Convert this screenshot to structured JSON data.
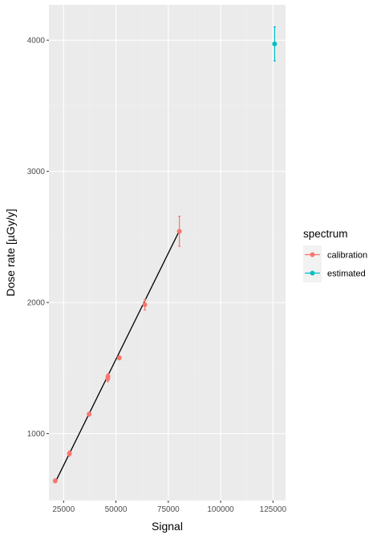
{
  "chart_data": {
    "type": "scatter",
    "xlabel": "Signal",
    "ylabel": "Dose rate [µGy/y]",
    "xlim": [
      18000,
      131000
    ],
    "ylim": [
      490,
      4270
    ],
    "xticks": [
      25000,
      50000,
      75000,
      100000,
      125000
    ],
    "xtick_labels": [
      "25000",
      "50000",
      "75000",
      "100000",
      "125000"
    ],
    "yticks": [
      1000,
      2000,
      3000,
      4000
    ],
    "ytick_labels": [
      "1000",
      "2000",
      "3000",
      "4000"
    ],
    "grid": true,
    "legend": {
      "title": "spectrum",
      "placement": "right",
      "entries": [
        {
          "label": "calibration",
          "color": "#F8766D"
        },
        {
          "label": "estimated",
          "color": "#00BFC4"
        }
      ]
    },
    "series": [
      {
        "name": "calibration",
        "color": "#F8766D",
        "points": [
          {
            "x": 21000,
            "y": 640,
            "err": 15
          },
          {
            "x": 27800,
            "y": 848,
            "err": 20
          },
          {
            "x": 37200,
            "y": 1148,
            "err": 15
          },
          {
            "x": 46100,
            "y": 1420,
            "err": 25
          },
          {
            "x": 46200,
            "y": 1436,
            "err": 20
          },
          {
            "x": 51600,
            "y": 1578,
            "err": 15
          },
          {
            "x": 63800,
            "y": 1983,
            "err": 40
          },
          {
            "x": 80300,
            "y": 2543,
            "err": 115
          }
        ]
      },
      {
        "name": "estimated",
        "color": "#00BFC4",
        "points": [
          {
            "x": 125800,
            "y": 3972,
            "err": 130
          }
        ]
      }
    ],
    "fit_line": {
      "color": "#000000",
      "x": [
        21000,
        80300
      ],
      "y": [
        628,
        2547
      ]
    }
  }
}
